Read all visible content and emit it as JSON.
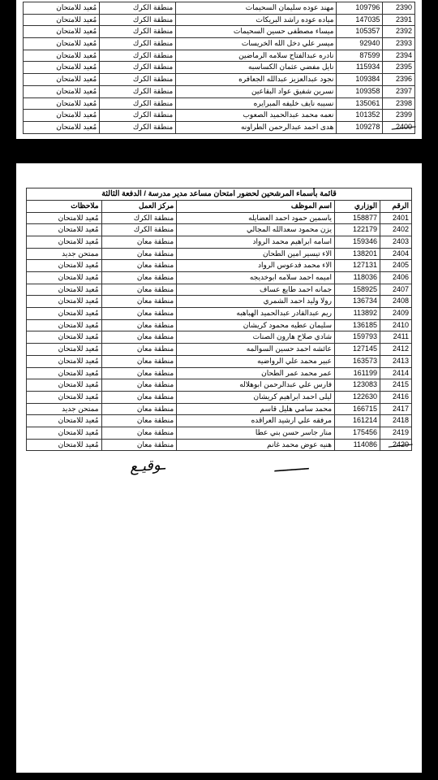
{
  "table1": {
    "rows": [
      {
        "idx": "2390",
        "min": "109796",
        "name": "مهند عوده سليمان السحيمات",
        "center": "منطقة الكرك",
        "notes": "مُعيد للامتحان"
      },
      {
        "idx": "2391",
        "min": "147035",
        "name": "مياده عوده راشد البريكات",
        "center": "منطقة الكرك",
        "notes": "مُعيد للامتحان"
      },
      {
        "idx": "2392",
        "min": "105357",
        "name": "ميساء مصطفى حسين السحيمات",
        "center": "منطقة الكرك",
        "notes": "مُعيد للامتحان"
      },
      {
        "idx": "2393",
        "min": "92940",
        "name": "ميسر علي دخل الله الخريسات",
        "center": "منطقة الكرك",
        "notes": "مُعيد للامتحان"
      },
      {
        "idx": "2394",
        "min": "87599",
        "name": "نادره عبدالفتاح سلامه الرماضين",
        "center": "منطقة الكرك",
        "notes": "مُعيد للامتحان"
      },
      {
        "idx": "2395",
        "min": "115934",
        "name": "نايل مفضي عثمان الكساسبه",
        "center": "منطقة الكرك",
        "notes": "مُعيد للامتحان"
      },
      {
        "idx": "2396",
        "min": "109384",
        "name": "نجود عبدالعزيز عبدالله الجعافره",
        "center": "منطقة الكرك",
        "notes": "مُعيد للامتحان"
      },
      {
        "idx": "2397",
        "min": "109358",
        "name": "نسرين شفيق عواد البقاعين",
        "center": "منطقة الكرك",
        "notes": "مُعيد للامتحان"
      },
      {
        "idx": "2398",
        "min": "135061",
        "name": "نسيبه نايف خليفه المبرايره",
        "center": "منطقة الكرك",
        "notes": "مُعيد للامتحان"
      },
      {
        "idx": "2399",
        "min": "101352",
        "name": "نعمه محمد عبدالحميد الصعوب",
        "center": "منطقة الكرك",
        "notes": "مُعيد للامتحان"
      },
      {
        "idx": "2400",
        "min": "109278",
        "name": "هدى احمد عبدالرحمن الطراونه",
        "center": "منطقة الكرك",
        "notes": "مُعيد للامتحان"
      }
    ]
  },
  "table2": {
    "title": "قائمة بأسماء المرشحين لحضور امتحان مساعد مدير مدرسة / الدفعة الثالثة",
    "headers": {
      "idx": "الرقم",
      "min": "الوزاري",
      "name": "اسم الموظف",
      "center": "مركز العمل",
      "notes": "ملاحظات"
    },
    "rows": [
      {
        "idx": "2401",
        "min": "158877",
        "name": "ياسمين حمود احمد العضايله",
        "center": "منطقة الكرك",
        "notes": "مُعيد للامتحان"
      },
      {
        "idx": "2402",
        "min": "122179",
        "name": "يزن محمود سعدالله المجالي",
        "center": "منطقة الكرك",
        "notes": "مُعيد للامتحان"
      },
      {
        "idx": "2403",
        "min": "159346",
        "name": "اسامه ابراهيم محمد الرواد",
        "center": "منطقة معان",
        "notes": "مُعيد للامتحان"
      },
      {
        "idx": "2404",
        "min": "138201",
        "name": "الاء تيسير امين الطحان",
        "center": "منطقة معان",
        "notes": "ممتحن جديد"
      },
      {
        "idx": "2405",
        "min": "127131",
        "name": "الاء محمد فدعوس الرواد",
        "center": "منطقة معان",
        "notes": "مُعيد للامتحان"
      },
      {
        "idx": "2406",
        "min": "118036",
        "name": "اميمه احمد سلامه ابوخديجه",
        "center": "منطقة معان",
        "notes": "مُعيد للامتحان"
      },
      {
        "idx": "2407",
        "min": "158925",
        "name": "جمانه احمد طايع عساف",
        "center": "منطقة معان",
        "notes": "مُعيد للامتحان"
      },
      {
        "idx": "2408",
        "min": "136734",
        "name": "رولا وليد احمد الشمري",
        "center": "منطقة معان",
        "notes": "مُعيد للامتحان"
      },
      {
        "idx": "2409",
        "min": "113892",
        "name": "ريم عبدالقادر عبدالحميد الهباهبه",
        "center": "منطقة معان",
        "notes": "مُعيد للامتحان"
      },
      {
        "idx": "2410",
        "min": "136185",
        "name": "سليمان عطيه محمود كريشان",
        "center": "منطقة معان",
        "notes": "مُعيد للامتحان"
      },
      {
        "idx": "2411",
        "min": "159793",
        "name": "شادي صلاح هارون الصنات",
        "center": "منطقة معان",
        "notes": "مُعيد للامتحان"
      },
      {
        "idx": "2412",
        "min": "127145",
        "name": "عائشه احمد حسين السوالمه",
        "center": "منطقة معان",
        "notes": "مُعيد للامتحان"
      },
      {
        "idx": "2413",
        "min": "163573",
        "name": "عبير محمد علي الرواضيه",
        "center": "منطقة معان",
        "notes": "مُعيد للامتحان"
      },
      {
        "idx": "2414",
        "min": "161199",
        "name": "عمر محمد عمر الطحان",
        "center": "منطقة معان",
        "notes": "مُعيد للامتحان"
      },
      {
        "idx": "2415",
        "min": "123083",
        "name": "فارس علي عبدالرحمن ابوهلاله",
        "center": "منطقة معان",
        "notes": "مُعيد للامتحان"
      },
      {
        "idx": "2416",
        "min": "122630",
        "name": "ليلى احمد ابراهيم كريشان",
        "center": "منطقة معان",
        "notes": "مُعيد للامتحان"
      },
      {
        "idx": "2417",
        "min": "166715",
        "name": "محمد سامي هليل قاسم",
        "center": "منطقة معان",
        "notes": "ممتحن جديد"
      },
      {
        "idx": "2418",
        "min": "161214",
        "name": "مرفقه علي ارشيد العراقده",
        "center": "منطقة معان",
        "notes": "مُعيد للامتحان"
      },
      {
        "idx": "2419",
        "min": "175456",
        "name": "منار جاسر حسن بني عطا",
        "center": "منطقة معان",
        "notes": "مُعيد للامتحان"
      },
      {
        "idx": "2420",
        "min": "114086",
        "name": "هنيه عوض محمد غانم",
        "center": "منطقة معان",
        "notes": "مُعيد للامتحان"
      }
    ]
  }
}
